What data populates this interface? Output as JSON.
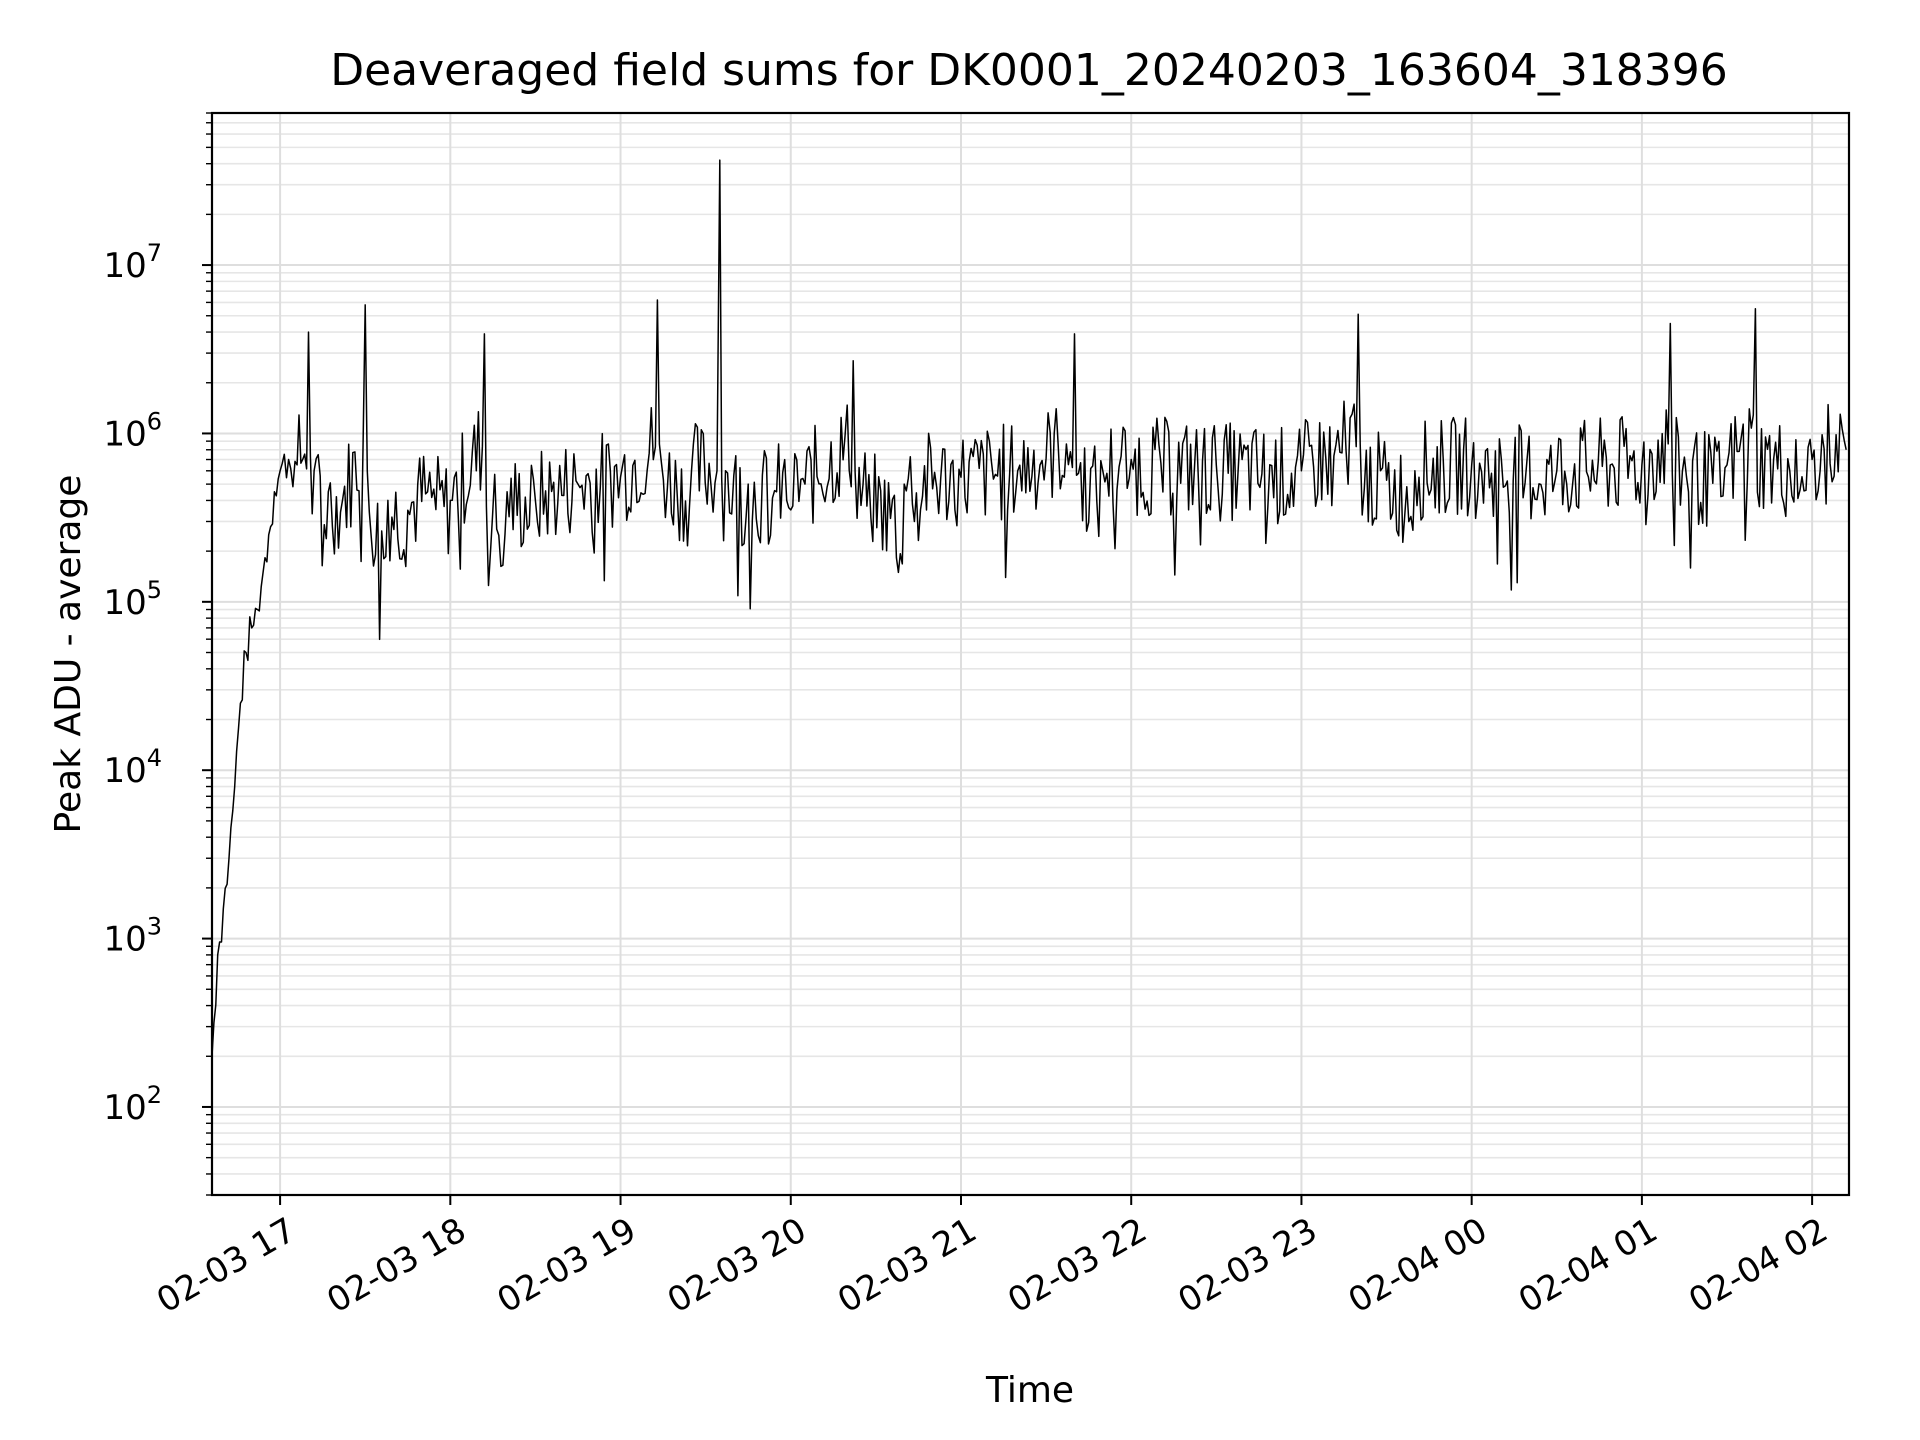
{
  "chart_data": {
    "type": "line",
    "title": "Deaveraged field sums for DK0001_20240203_163604_318396",
    "xlabel": "Time",
    "ylabel": "Peak ADU - average",
    "yscale": "log",
    "ylim": [
      30,
      80000000
    ],
    "xlim": [
      "2024-02-03 16:36",
      "2024-02-04 02:13"
    ],
    "grid": true,
    "line_color": "#000000",
    "x_ticks": [
      "02-03 17",
      "02-03 18",
      "02-03 19",
      "02-03 20",
      "02-03 21",
      "02-03 22",
      "02-03 23",
      "02-04 00",
      "02-04 01",
      "02-04 02"
    ],
    "y_ticks": [
      {
        "base": "10",
        "exp": "2"
      },
      {
        "base": "10",
        "exp": "3"
      },
      {
        "base": "10",
        "exp": "4"
      },
      {
        "base": "10",
        "exp": "5"
      },
      {
        "base": "10",
        "exp": "6"
      },
      {
        "base": "10",
        "exp": "7"
      }
    ],
    "series": [
      {
        "x": [
          "2024-02-03 16:36",
          "2024-02-03 16:38",
          "2024-02-03 16:40",
          "2024-02-03 16:42",
          "2024-02-03 16:44",
          "2024-02-03 16:46",
          "2024-02-03 16:48",
          "2024-02-03 16:50",
          "2024-02-03 16:52",
          "2024-02-03 16:54",
          "2024-02-03 16:56",
          "2024-02-03 16:58",
          "2024-02-03 17:00",
          "2024-02-03 17:03",
          "2024-02-03 17:06",
          "2024-02-03 17:10",
          "2024-02-03 17:12",
          "2024-02-03 17:17",
          "2024-02-03 17:22",
          "2024-02-03 17:30",
          "2024-02-03 17:38",
          "2024-02-03 17:45",
          "2024-02-03 17:52",
          "2024-02-03 18:00",
          "2024-02-03 18:12",
          "2024-02-03 18:20",
          "2024-02-03 18:30",
          "2024-02-03 18:45",
          "2024-02-03 19:00",
          "2024-02-03 19:13",
          "2024-02-03 19:25",
          "2024-02-03 19:34",
          "2024-02-03 19:35",
          "2024-02-03 19:37",
          "2024-02-03 19:45",
          "2024-02-03 19:55",
          "2024-02-03 20:05",
          "2024-02-03 20:22",
          "2024-02-03 20:40",
          "2024-02-03 21:00",
          "2024-02-03 21:20",
          "2024-02-03 21:40",
          "2024-02-03 21:50",
          "2024-02-03 22:00",
          "2024-02-03 22:30",
          "2024-02-03 23:00",
          "2024-02-03 23:20",
          "2024-02-03 23:40",
          "2024-02-04 00:00",
          "2024-02-04 00:30",
          "2024-02-04 01:00",
          "2024-02-04 01:10",
          "2024-02-04 01:30",
          "2024-02-04 01:40",
          "2024-02-04 02:00",
          "2024-02-04 02:12"
        ],
        "y": [
          200,
          800,
          1500,
          3000,
          8000,
          25000,
          50000,
          70000,
          90000,
          150000,
          250000,
          450000,
          600000,
          700000,
          650000,
          4000000,
          600000,
          450000,
          400000,
          5800000,
          400000,
          350000,
          450000,
          400000,
          3900000,
          450000,
          400000,
          500000,
          550000,
          6200000,
          600000,
          600000,
          42000000,
          600000,
          500000,
          450000,
          500000,
          2700000,
          500000,
          550000,
          600000,
          3900000,
          600000,
          700000,
          650000,
          600000,
          5100000,
          600000,
          650000,
          600000,
          650000,
          4500000,
          650000,
          5500000,
          700000,
          800000
        ]
      }
    ]
  }
}
